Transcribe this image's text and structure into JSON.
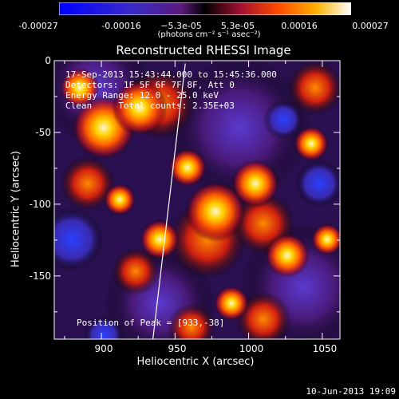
{
  "colorbar": {
    "ticks": [
      "-0.00027",
      "-0.00016",
      "−5.3e-05",
      "5.3e-05",
      "0.00016",
      "0.00027"
    ],
    "units": "(photons cm⁻² s⁻¹ asec⁻²)"
  },
  "chart_data": {
    "type": "heatmap",
    "title": "Reconstructed RHESSI Image",
    "xlabel": "Heliocentric X (arcsec)",
    "ylabel": "Heliocentric Y (arcsec)",
    "xlim": [
      868,
      1062
    ],
    "ylim": [
      -194,
      0
    ],
    "xticks": [
      "900",
      "950",
      "1000",
      "1050"
    ],
    "yticks": [
      "0",
      "-50",
      "-100",
      "-150"
    ],
    "color_range": [
      -0.00027,
      0.00027
    ],
    "limb_line": {
      "x": [
        935,
        957
      ],
      "y": [
        -194,
        -2
      ]
    },
    "annotations": [
      "17-Sep-2013 15:43:44.000 to 15:45:36.000",
      "Detectors: 1F 5F 6F 7F 8F, Att 0",
      "Energy Range: 12.0 - 25.0 keV",
      "Clean     Total counts: 2.35E+03"
    ],
    "peak_label": "Position of Peak = [933,-38]",
    "peak": [
      933,
      -38
    ]
  },
  "footer": {
    "timestamp": "10-Jun-2013 19:09"
  }
}
